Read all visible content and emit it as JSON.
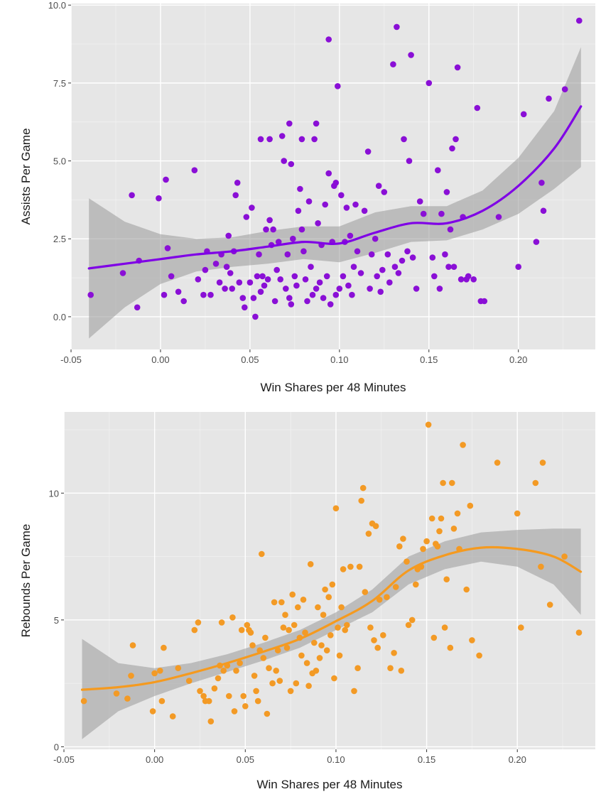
{
  "chart_data": [
    {
      "type": "scatter",
      "xlabel": "Win Shares per 48 Minutes",
      "ylabel": "Assists Per Game",
      "xlim": [
        -0.05,
        0.243
      ],
      "ylim": [
        -1.05,
        10.05
      ],
      "x_ticks": [
        -0.05,
        0.0,
        0.05,
        0.1,
        0.15,
        0.2
      ],
      "x_tick_labels": [
        "-0.05",
        "0.00",
        "0.05",
        "0.10",
        "0.15",
        "0.20"
      ],
      "y_ticks": [
        0,
        2.5,
        5,
        7.5,
        10
      ],
      "y_tick_labels": [
        "0.0",
        "2.5",
        "5.0",
        "7.5",
        "10.0"
      ],
      "grid": true,
      "point_color": "#8a0fd6",
      "line_color": "#7f00e6",
      "band_color": "#999999",
      "background_color": "#e6e6e6",
      "points": [
        [
          -0.039,
          0.7
        ],
        [
          -0.021,
          1.4
        ],
        [
          -0.016,
          3.9
        ],
        [
          -0.013,
          0.3
        ],
        [
          -0.012,
          1.8
        ],
        [
          -0.001,
          3.8
        ],
        [
          0.002,
          0.7
        ],
        [
          0.003,
          4.4
        ],
        [
          0.004,
          2.2
        ],
        [
          0.006,
          1.3
        ],
        [
          0.01,
          0.8
        ],
        [
          0.013,
          0.5
        ],
        [
          0.019,
          4.7
        ],
        [
          0.021,
          1.2
        ],
        [
          0.024,
          0.7
        ],
        [
          0.025,
          1.5
        ],
        [
          0.026,
          2.1
        ],
        [
          0.028,
          0.7
        ],
        [
          0.031,
          1.7
        ],
        [
          0.033,
          1.1
        ],
        [
          0.034,
          2.0
        ],
        [
          0.036,
          0.9
        ],
        [
          0.037,
          1.6
        ],
        [
          0.038,
          2.6
        ],
        [
          0.039,
          1.4
        ],
        [
          0.04,
          0.9
        ],
        [
          0.041,
          2.1
        ],
        [
          0.042,
          3.9
        ],
        [
          0.043,
          4.3
        ],
        [
          0.044,
          1.1
        ],
        [
          0.046,
          0.6
        ],
        [
          0.047,
          0.3
        ],
        [
          0.048,
          3.2
        ],
        [
          0.05,
          1.1
        ],
        [
          0.051,
          3.5
        ],
        [
          0.052,
          0.6
        ],
        [
          0.053,
          0.0
        ],
        [
          0.054,
          1.3
        ],
        [
          0.055,
          2.0
        ],
        [
          0.056,
          0.8
        ],
        [
          0.057,
          1.3
        ],
        [
          0.058,
          1.0
        ],
        [
          0.059,
          2.8
        ],
        [
          0.06,
          1.2
        ],
        [
          0.061,
          3.1
        ],
        [
          0.062,
          2.3
        ],
        [
          0.063,
          2.8
        ],
        [
          0.064,
          0.5
        ],
        [
          0.065,
          1.5
        ],
        [
          0.066,
          2.4
        ],
        [
          0.067,
          1.2
        ],
        [
          0.068,
          5.8
        ],
        [
          0.069,
          5.0
        ],
        [
          0.07,
          0.9
        ],
        [
          0.071,
          2.0
        ],
        [
          0.072,
          0.6
        ],
        [
          0.073,
          0.4
        ],
        [
          0.074,
          2.5
        ],
        [
          0.075,
          1.3
        ],
        [
          0.076,
          1.0
        ],
        [
          0.077,
          3.4
        ],
        [
          0.078,
          4.1
        ],
        [
          0.079,
          2.8
        ],
        [
          0.08,
          2.1
        ],
        [
          0.081,
          1.2
        ],
        [
          0.082,
          0.5
        ],
        [
          0.083,
          3.7
        ],
        [
          0.084,
          1.6
        ],
        [
          0.085,
          0.7
        ],
        [
          0.086,
          5.7
        ],
        [
          0.087,
          0.9
        ],
        [
          0.088,
          3.0
        ],
        [
          0.089,
          1.1
        ],
        [
          0.09,
          2.3
        ],
        [
          0.091,
          0.6
        ],
        [
          0.092,
          3.6
        ],
        [
          0.093,
          1.3
        ],
        [
          0.094,
          4.6
        ],
        [
          0.095,
          0.4
        ],
        [
          0.096,
          2.4
        ],
        [
          0.097,
          4.2
        ],
        [
          0.098,
          0.7
        ],
        [
          0.099,
          7.4
        ],
        [
          0.1,
          0.9
        ],
        [
          0.101,
          3.9
        ],
        [
          0.102,
          1.3
        ],
        [
          0.103,
          2.4
        ],
        [
          0.104,
          3.5
        ],
        [
          0.105,
          1.0
        ],
        [
          0.106,
          2.6
        ],
        [
          0.107,
          0.7
        ],
        [
          0.108,
          1.6
        ],
        [
          0.109,
          3.6
        ],
        [
          0.11,
          2.1
        ],
        [
          0.112,
          1.4
        ],
        [
          0.114,
          3.4
        ],
        [
          0.116,
          5.3
        ],
        [
          0.117,
          0.9
        ],
        [
          0.118,
          2.0
        ],
        [
          0.12,
          2.5
        ],
        [
          0.121,
          1.3
        ],
        [
          0.122,
          4.2
        ],
        [
          0.123,
          0.8
        ],
        [
          0.124,
          1.5
        ],
        [
          0.125,
          4.0
        ],
        [
          0.127,
          2.0
        ],
        [
          0.128,
          1.1
        ],
        [
          0.13,
          8.1
        ],
        [
          0.131,
          1.6
        ],
        [
          0.133,
          1.4
        ],
        [
          0.135,
          1.8
        ],
        [
          0.136,
          5.7
        ],
        [
          0.138,
          2.1
        ],
        [
          0.14,
          8.4
        ],
        [
          0.141,
          1.9
        ],
        [
          0.143,
          0.9
        ],
        [
          0.145,
          3.7
        ],
        [
          0.147,
          3.3
        ],
        [
          0.15,
          7.5
        ],
        [
          0.152,
          1.9
        ],
        [
          0.153,
          1.3
        ],
        [
          0.155,
          4.7
        ],
        [
          0.156,
          0.9
        ],
        [
          0.157,
          3.3
        ],
        [
          0.159,
          2.0
        ],
        [
          0.16,
          4.0
        ],
        [
          0.161,
          1.6
        ],
        [
          0.162,
          2.8
        ],
        [
          0.163,
          5.4
        ],
        [
          0.164,
          1.6
        ],
        [
          0.165,
          5.7
        ],
        [
          0.166,
          8.0
        ],
        [
          0.168,
          1.2
        ],
        [
          0.169,
          3.2
        ],
        [
          0.171,
          1.2
        ],
        [
          0.172,
          1.3
        ],
        [
          0.175,
          1.2
        ],
        [
          0.177,
          6.7
        ],
        [
          0.179,
          0.5
        ],
        [
          0.181,
          0.5
        ],
        [
          0.189,
          3.2
        ],
        [
          0.2,
          1.6
        ],
        [
          0.203,
          6.5
        ],
        [
          0.21,
          2.4
        ],
        [
          0.213,
          4.3
        ],
        [
          0.214,
          3.4
        ],
        [
          0.217,
          7.0
        ],
        [
          0.226,
          7.3
        ],
        [
          0.234,
          9.5
        ],
        [
          0.094,
          8.9
        ],
        [
          0.132,
          9.3
        ],
        [
          0.072,
          6.2
        ],
        [
          0.087,
          6.2
        ],
        [
          0.098,
          4.3
        ],
        [
          0.079,
          5.7
        ],
        [
          0.056,
          5.7
        ],
        [
          0.073,
          4.9
        ],
        [
          0.061,
          5.7
        ],
        [
          0.139,
          5.0
        ]
      ],
      "smooth_x": [
        -0.04,
        -0.02,
        0.0,
        0.02,
        0.04,
        0.06,
        0.08,
        0.1,
        0.12,
        0.14,
        0.16,
        0.18,
        0.2,
        0.22,
        0.235
      ],
      "smooth_y": [
        1.55,
        1.7,
        1.85,
        2.0,
        2.1,
        2.25,
        2.4,
        2.35,
        2.7,
        3.0,
        3.0,
        3.4,
        4.2,
        5.4,
        6.75
      ],
      "band_lower": [
        -0.7,
        0.3,
        1.05,
        1.45,
        1.6,
        1.7,
        1.85,
        1.75,
        2.05,
        2.4,
        2.45,
        2.8,
        3.3,
        4.1,
        4.8
      ],
      "band_upper": [
        3.8,
        3.05,
        2.65,
        2.5,
        2.55,
        2.75,
        2.9,
        2.9,
        3.35,
        3.55,
        3.55,
        4.05,
        5.1,
        6.6,
        8.65
      ]
    },
    {
      "type": "scatter",
      "xlabel": "Win Shares per 48 Minutes",
      "ylabel": "Rebounds Per Game",
      "xlim": [
        -0.05,
        0.243
      ],
      "ylim": [
        -0.1,
        13.2
      ],
      "x_ticks": [
        -0.05,
        0.0,
        0.05,
        0.1,
        0.15,
        0.2
      ],
      "x_tick_labels": [
        "-0.05",
        "0.00",
        "0.05",
        "0.10",
        "0.15",
        "0.20"
      ],
      "y_ticks": [
        0,
        5,
        10
      ],
      "y_tick_labels": [
        "0",
        "5",
        "10"
      ],
      "grid": true,
      "point_color": "#f39a25",
      "line_color": "#f59a1f",
      "band_color": "#999999",
      "background_color": "#e6e6e6",
      "points": [
        [
          -0.039,
          1.8
        ],
        [
          -0.021,
          2.1
        ],
        [
          -0.015,
          1.9
        ],
        [
          -0.013,
          2.8
        ],
        [
          -0.012,
          4.0
        ],
        [
          -0.001,
          1.4
        ],
        [
          0.0,
          2.9
        ],
        [
          0.003,
          3.0
        ],
        [
          0.004,
          1.8
        ],
        [
          0.005,
          3.9
        ],
        [
          0.01,
          1.2
        ],
        [
          0.013,
          3.1
        ],
        [
          0.019,
          2.6
        ],
        [
          0.022,
          4.6
        ],
        [
          0.024,
          4.9
        ],
        [
          0.025,
          2.2
        ],
        [
          0.027,
          2.0
        ],
        [
          0.028,
          1.8
        ],
        [
          0.03,
          1.8
        ],
        [
          0.031,
          1.0
        ],
        [
          0.033,
          2.3
        ],
        [
          0.035,
          2.7
        ],
        [
          0.036,
          3.2
        ],
        [
          0.037,
          4.9
        ],
        [
          0.038,
          3.0
        ],
        [
          0.04,
          3.2
        ],
        [
          0.041,
          2.0
        ],
        [
          0.043,
          5.1
        ],
        [
          0.044,
          1.4
        ],
        [
          0.045,
          3.0
        ],
        [
          0.047,
          3.3
        ],
        [
          0.048,
          4.6
        ],
        [
          0.049,
          2.0
        ],
        [
          0.05,
          1.6
        ],
        [
          0.051,
          4.8
        ],
        [
          0.052,
          4.6
        ],
        [
          0.053,
          4.5
        ],
        [
          0.054,
          4.0
        ],
        [
          0.055,
          2.8
        ],
        [
          0.056,
          2.2
        ],
        [
          0.057,
          1.8
        ],
        [
          0.058,
          3.8
        ],
        [
          0.059,
          7.6
        ],
        [
          0.06,
          3.5
        ],
        [
          0.061,
          4.3
        ],
        [
          0.062,
          1.3
        ],
        [
          0.063,
          3.1
        ],
        [
          0.065,
          2.5
        ],
        [
          0.066,
          5.7
        ],
        [
          0.067,
          3.0
        ],
        [
          0.068,
          3.8
        ],
        [
          0.069,
          2.6
        ],
        [
          0.07,
          5.7
        ],
        [
          0.071,
          4.7
        ],
        [
          0.072,
          5.2
        ],
        [
          0.073,
          3.9
        ],
        [
          0.074,
          4.6
        ],
        [
          0.075,
          2.2
        ],
        [
          0.076,
          6.0
        ],
        [
          0.077,
          4.8
        ],
        [
          0.078,
          2.5
        ],
        [
          0.079,
          5.5
        ],
        [
          0.08,
          4.3
        ],
        [
          0.081,
          3.6
        ],
        [
          0.082,
          5.8
        ],
        [
          0.083,
          4.5
        ],
        [
          0.084,
          3.3
        ],
        [
          0.085,
          2.4
        ],
        [
          0.086,
          7.2
        ],
        [
          0.087,
          2.9
        ],
        [
          0.088,
          4.1
        ],
        [
          0.089,
          3.0
        ],
        [
          0.09,
          5.5
        ],
        [
          0.091,
          3.5
        ],
        [
          0.092,
          4.0
        ],
        [
          0.093,
          5.2
        ],
        [
          0.094,
          6.2
        ],
        [
          0.095,
          3.8
        ],
        [
          0.096,
          5.9
        ],
        [
          0.097,
          4.4
        ],
        [
          0.098,
          6.4
        ],
        [
          0.099,
          2.7
        ],
        [
          0.1,
          9.4
        ],
        [
          0.101,
          4.7
        ],
        [
          0.102,
          3.6
        ],
        [
          0.103,
          5.5
        ],
        [
          0.104,
          7.0
        ],
        [
          0.105,
          4.6
        ],
        [
          0.106,
          4.8
        ],
        [
          0.108,
          7.1
        ],
        [
          0.11,
          2.2
        ],
        [
          0.112,
          3.1
        ],
        [
          0.113,
          7.1
        ],
        [
          0.114,
          9.7
        ],
        [
          0.115,
          10.2
        ],
        [
          0.116,
          6.1
        ],
        [
          0.118,
          8.4
        ],
        [
          0.119,
          4.7
        ],
        [
          0.12,
          8.8
        ],
        [
          0.121,
          4.2
        ],
        [
          0.122,
          8.7
        ],
        [
          0.123,
          3.9
        ],
        [
          0.124,
          5.8
        ],
        [
          0.126,
          4.4
        ],
        [
          0.128,
          5.9
        ],
        [
          0.13,
          3.1
        ],
        [
          0.132,
          3.7
        ],
        [
          0.133,
          6.3
        ],
        [
          0.135,
          7.9
        ],
        [
          0.136,
          3.0
        ],
        [
          0.137,
          8.2
        ],
        [
          0.139,
          7.3
        ],
        [
          0.14,
          4.8
        ],
        [
          0.142,
          5.0
        ],
        [
          0.144,
          6.4
        ],
        [
          0.145,
          7.0
        ],
        [
          0.147,
          7.1
        ],
        [
          0.148,
          7.8
        ],
        [
          0.15,
          8.1
        ],
        [
          0.151,
          12.7
        ],
        [
          0.153,
          9.0
        ],
        [
          0.154,
          4.3
        ],
        [
          0.155,
          8.0
        ],
        [
          0.156,
          7.9
        ],
        [
          0.157,
          8.5
        ],
        [
          0.158,
          9.0
        ],
        [
          0.159,
          10.4
        ],
        [
          0.16,
          4.7
        ],
        [
          0.161,
          6.6
        ],
        [
          0.163,
          3.9
        ],
        [
          0.164,
          10.4
        ],
        [
          0.165,
          8.6
        ],
        [
          0.167,
          9.2
        ],
        [
          0.168,
          7.8
        ],
        [
          0.17,
          11.9
        ],
        [
          0.172,
          6.2
        ],
        [
          0.174,
          9.5
        ],
        [
          0.175,
          4.2
        ],
        [
          0.179,
          3.6
        ],
        [
          0.189,
          11.2
        ],
        [
          0.2,
          9.2
        ],
        [
          0.202,
          4.7
        ],
        [
          0.21,
          10.4
        ],
        [
          0.213,
          7.1
        ],
        [
          0.214,
          11.2
        ],
        [
          0.218,
          5.6
        ],
        [
          0.226,
          7.5
        ],
        [
          0.234,
          4.5
        ]
      ],
      "smooth_x": [
        -0.04,
        -0.02,
        0.0,
        0.02,
        0.04,
        0.06,
        0.08,
        0.1,
        0.12,
        0.14,
        0.16,
        0.18,
        0.2,
        0.22,
        0.235
      ],
      "smooth_y": [
        2.25,
        2.35,
        2.55,
        2.9,
        3.3,
        3.75,
        4.25,
        4.95,
        5.75,
        6.95,
        7.55,
        7.85,
        7.8,
        7.5,
        6.9
      ],
      "band_lower": [
        0.3,
        1.4,
        2.0,
        2.5,
        2.95,
        3.4,
        3.9,
        4.6,
        5.3,
        6.4,
        7.0,
        7.3,
        7.1,
        6.4,
        5.2
      ],
      "band_upper": [
        4.25,
        3.3,
        3.1,
        3.3,
        3.65,
        4.1,
        4.6,
        5.3,
        6.2,
        7.5,
        8.1,
        8.45,
        8.55,
        8.6,
        8.6
      ]
    }
  ]
}
